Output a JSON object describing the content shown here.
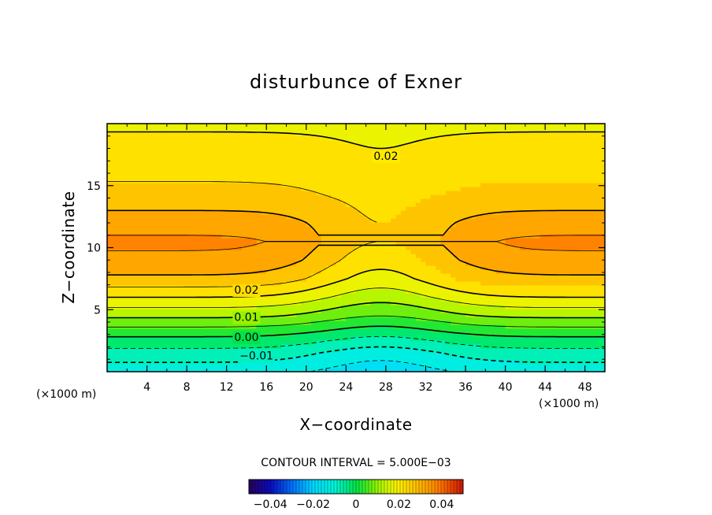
{
  "chart_data": {
    "type": "heatmap",
    "title": "disturbunce of Exner",
    "xlabel": "X−coordinate",
    "ylabel": "Z−coordinate",
    "x_unit_left": "(×1000 m)",
    "x_unit_right": "(×1000 m)",
    "xlim": [
      0,
      50
    ],
    "ylim": [
      0,
      20
    ],
    "x_ticks": [
      4,
      8,
      12,
      16,
      20,
      24,
      28,
      32,
      36,
      40,
      44,
      48
    ],
    "x_tick_labels": [
      "4",
      "8",
      "12",
      "16",
      "20",
      "24",
      "28",
      "32",
      "36",
      "40",
      "44",
      "48"
    ],
    "y_ticks": [
      5,
      10,
      15
    ],
    "y_tick_labels": [
      "5",
      "10",
      "15"
    ],
    "contour_interval_text": "CONTOUR INTERVAL = 5.000E−03",
    "contour_interval": 0.005,
    "contour_labels": [
      {
        "text": "0.02",
        "x": 28,
        "y": 17.4
      },
      {
        "text": "0.02",
        "x": 14,
        "y": 6.6
      },
      {
        "text": "0.01",
        "x": 14,
        "y": 4.4
      },
      {
        "text": "0.00",
        "x": 14,
        "y": 2.8
      },
      {
        "text": "−0.01",
        "x": 15,
        "y": 1.3
      }
    ],
    "field_profile": {
      "z": [
        0,
        1.5,
        3,
        4.5,
        6,
        7.5,
        9,
        10.5,
        12,
        14,
        16,
        18,
        20
      ],
      "value_at_edges": [
        -0.013,
        -0.007,
        0.001,
        0.011,
        0.02,
        0.029,
        0.034,
        0.036,
        0.033,
        0.027,
        0.024,
        0.022,
        0.019
      ],
      "value_at_center": [
        -0.018,
        -0.013,
        -0.004,
        0.005,
        0.012,
        0.018,
        0.022,
        0.025,
        0.025,
        0.024,
        0.022,
        0.02,
        0.019
      ]
    },
    "colorbar": {
      "range": [
        -0.05,
        0.05
      ],
      "tick_values": [
        -0.04,
        -0.02,
        0,
        0.02,
        0.04
      ],
      "tick_labels": [
        "−0.04",
        "−0.02",
        "0",
        "0.02",
        "0.04"
      ]
    }
  }
}
